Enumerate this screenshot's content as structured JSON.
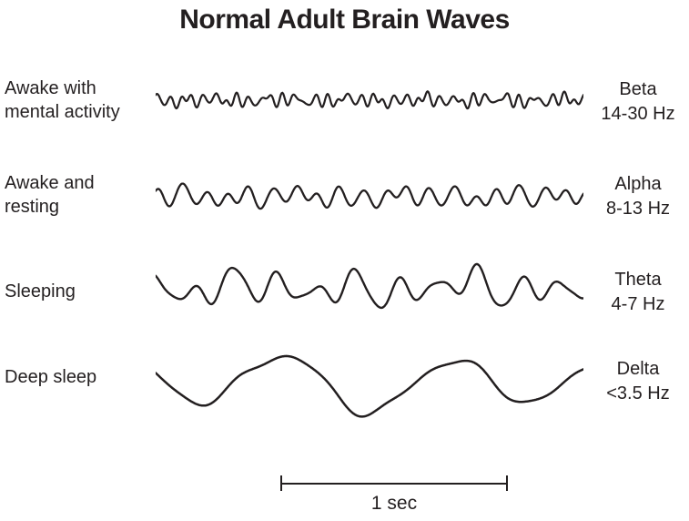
{
  "title": "Normal Adult Brain Waves",
  "ink_color": "#231f20",
  "rows": [
    {
      "state_line1": "Awake with",
      "state_line2": "mental activity",
      "wave_name": "Beta",
      "wave_freq": "14-30 Hz"
    },
    {
      "state_line1": "Awake and",
      "state_line2": "resting",
      "wave_name": "Alpha",
      "wave_freq": "8-13 Hz"
    },
    {
      "state_line1": "Sleeping",
      "state_line2": "",
      "wave_name": "Theta",
      "wave_freq": "4-7 Hz"
    },
    {
      "state_line1": "Deep sleep",
      "state_line2": "",
      "wave_name": "Delta",
      "wave_freq": "<3.5 Hz"
    }
  ],
  "scale_bar": {
    "label": "1 sec"
  },
  "waves": [
    {
      "name": "beta",
      "stroke_width": 2.2,
      "components": [
        {
          "cycles": 38,
          "amp": 4.2,
          "phase": 0.0
        },
        {
          "cycles": 27,
          "amp": 3.2,
          "phase": 1.7
        },
        {
          "cycles": 16,
          "amp": 2.2,
          "phase": 0.6
        },
        {
          "cycles": 47,
          "amp": 1.6,
          "phase": 2.3
        },
        {
          "cycles": 6,
          "amp": 1.2,
          "phase": 3.1
        }
      ]
    },
    {
      "name": "alpha",
      "stroke_width": 2.3,
      "components": [
        {
          "cycles": 19,
          "amp": 7.5,
          "phase": 0.3
        },
        {
          "cycles": 14,
          "amp": 4.5,
          "phase": 2.2
        },
        {
          "cycles": 8,
          "amp": 3.0,
          "phase": 4.2
        },
        {
          "cycles": 24,
          "amp": 1.8,
          "phase": 1.1
        },
        {
          "cycles": 3.5,
          "amp": 2.0,
          "phase": 0.9
        }
      ]
    },
    {
      "name": "theta",
      "stroke_width": 2.4,
      "components": [
        {
          "cycles": 10.5,
          "amp": 13.0,
          "phase": 1.9
        },
        {
          "cycles": 7,
          "amp": 7.0,
          "phase": 0.4
        },
        {
          "cycles": 4,
          "amp": 5.0,
          "phase": 2.6
        },
        {
          "cycles": 17,
          "amp": 3.5,
          "phase": 3.3
        },
        {
          "cycles": 2,
          "amp": 3.0,
          "phase": 5.0
        }
      ]
    },
    {
      "name": "delta",
      "stroke_width": 2.5,
      "components": [
        {
          "cycles": 2.6,
          "amp": 27.0,
          "phase": 2.9
        },
        {
          "cycles": 1.3,
          "amp": 7.0,
          "phase": 0.2
        },
        {
          "cycles": 5.4,
          "amp": 4.0,
          "phase": 1.4
        },
        {
          "cycles": 8.8,
          "amp": 2.0,
          "phase": 3.8
        }
      ]
    }
  ]
}
